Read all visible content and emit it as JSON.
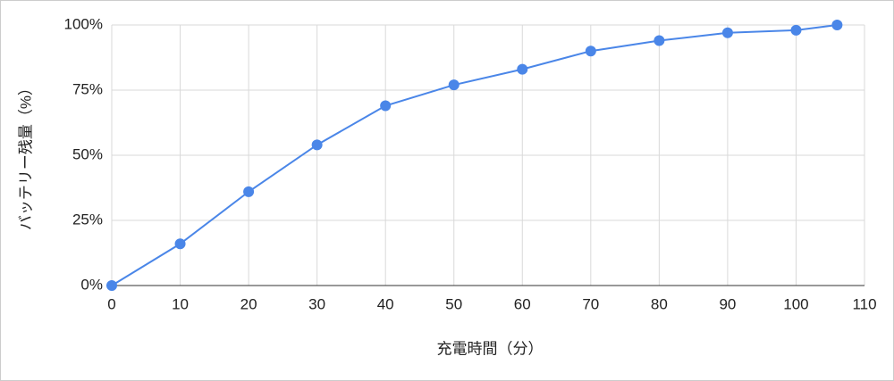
{
  "chart_data": {
    "type": "line",
    "x_label": "充電時間（分）",
    "y_label": "バッテリー残量（%）",
    "x": [
      0,
      10,
      20,
      30,
      40,
      50,
      60,
      70,
      80,
      90,
      100,
      106
    ],
    "series": [
      {
        "color": "#4a86e8",
        "values": [
          0,
          16,
          36,
          54,
          69,
          77,
          83,
          90,
          94,
          97,
          98,
          100
        ]
      }
    ],
    "xlim": [
      0,
      110
    ],
    "xticks": [
      0,
      10,
      20,
      30,
      40,
      50,
      60,
      70,
      80,
      90,
      100,
      110
    ],
    "ylim": [
      0,
      100
    ],
    "yticks": [
      {
        "value": 0,
        "label": "0%"
      },
      {
        "value": 25,
        "label": "25%"
      },
      {
        "value": 50,
        "label": "50%"
      },
      {
        "value": 75,
        "label": "75%"
      },
      {
        "value": 100,
        "label": "100%"
      }
    ],
    "grid": true
  }
}
